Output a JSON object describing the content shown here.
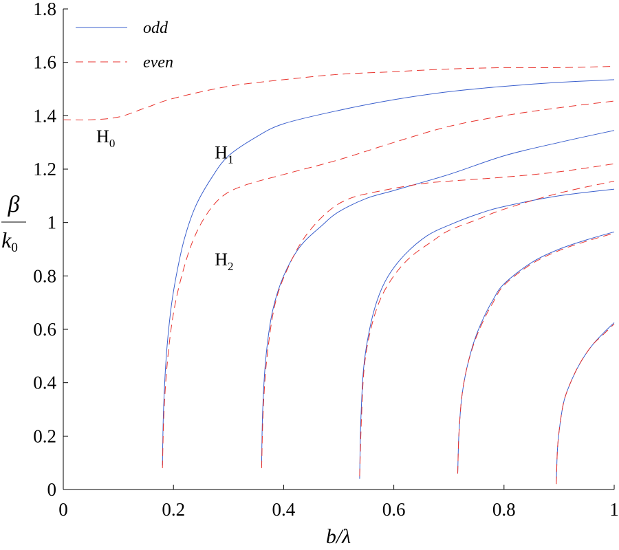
{
  "chart_data": {
    "type": "line",
    "title": "",
    "xlabel": "b/λ",
    "ylabel": {
      "numerator": "β",
      "denominator": "k",
      "denominator_sub": "0"
    },
    "xlim": [
      0,
      1
    ],
    "ylim": [
      0,
      1.8
    ],
    "xticks": [
      "0",
      "0.2",
      "0.4",
      "0.6",
      "0.8",
      "1"
    ],
    "yticks": [
      "0",
      "0.2",
      "0.4",
      "0.6",
      "0.8",
      "1",
      "1.2",
      "1.4",
      "1.6",
      "1.8"
    ],
    "grid": false,
    "legend_position": "top-left",
    "legend": [
      {
        "label": "odd",
        "style": "solid",
        "color": "#3a5fcd"
      },
      {
        "label": "even",
        "style": "dashed",
        "color": "#e8322c"
      }
    ],
    "annotations": [
      {
        "text": "H",
        "sub": "0",
        "x": 0.06,
        "y": 1.3
      },
      {
        "text": "H",
        "sub": "1",
        "x": 0.275,
        "y": 1.24
      },
      {
        "text": "H",
        "sub": "2",
        "x": 0.275,
        "y": 0.84
      }
    ],
    "series": [
      {
        "mode": "even",
        "style": "dashed",
        "points": [
          [
            0,
            1.385
          ],
          [
            0.05,
            1.385
          ],
          [
            0.1,
            1.395
          ],
          [
            0.15,
            1.43
          ],
          [
            0.2,
            1.465
          ],
          [
            0.3,
            1.51
          ],
          [
            0.4,
            1.535
          ],
          [
            0.5,
            1.555
          ],
          [
            0.6,
            1.565
          ],
          [
            0.7,
            1.575
          ],
          [
            0.8,
            1.58
          ],
          [
            0.9,
            1.58
          ],
          [
            1.0,
            1.585
          ]
        ]
      },
      {
        "mode": "odd",
        "style": "solid",
        "points": [
          [
            0.18,
            0.09
          ],
          [
            0.182,
            0.3
          ],
          [
            0.187,
            0.5
          ],
          [
            0.195,
            0.67
          ],
          [
            0.205,
            0.8
          ],
          [
            0.22,
            0.94
          ],
          [
            0.24,
            1.06
          ],
          [
            0.27,
            1.17
          ],
          [
            0.3,
            1.25
          ],
          [
            0.35,
            1.32
          ],
          [
            0.4,
            1.37
          ],
          [
            0.5,
            1.42
          ],
          [
            0.6,
            1.46
          ],
          [
            0.7,
            1.49
          ],
          [
            0.8,
            1.51
          ],
          [
            0.9,
            1.525
          ],
          [
            1.0,
            1.535
          ]
        ]
      },
      {
        "mode": "even",
        "style": "dashed",
        "points": [
          [
            0.18,
            0.08
          ],
          [
            0.183,
            0.3
          ],
          [
            0.19,
            0.5
          ],
          [
            0.2,
            0.66
          ],
          [
            0.215,
            0.8
          ],
          [
            0.235,
            0.93
          ],
          [
            0.26,
            1.03
          ],
          [
            0.29,
            1.1
          ],
          [
            0.33,
            1.14
          ],
          [
            0.4,
            1.18
          ],
          [
            0.5,
            1.235
          ],
          [
            0.6,
            1.3
          ],
          [
            0.7,
            1.36
          ],
          [
            0.8,
            1.4
          ],
          [
            0.9,
            1.43
          ],
          [
            1.0,
            1.455
          ]
        ]
      },
      {
        "mode": "odd",
        "style": "solid",
        "points": [
          [
            0.36,
            0.09
          ],
          [
            0.362,
            0.3
          ],
          [
            0.368,
            0.5
          ],
          [
            0.38,
            0.67
          ],
          [
            0.4,
            0.8
          ],
          [
            0.43,
            0.91
          ],
          [
            0.47,
            0.99
          ],
          [
            0.5,
            1.04
          ],
          [
            0.55,
            1.09
          ],
          [
            0.6,
            1.12
          ],
          [
            0.7,
            1.18
          ],
          [
            0.8,
            1.25
          ],
          [
            0.9,
            1.3
          ],
          [
            1.0,
            1.345
          ]
        ]
      },
      {
        "mode": "even",
        "style": "dashed",
        "points": [
          [
            0.36,
            0.08
          ],
          [
            0.363,
            0.3
          ],
          [
            0.37,
            0.5
          ],
          [
            0.385,
            0.7
          ],
          [
            0.41,
            0.84
          ],
          [
            0.44,
            0.95
          ],
          [
            0.48,
            1.04
          ],
          [
            0.52,
            1.09
          ],
          [
            0.58,
            1.12
          ],
          [
            0.65,
            1.145
          ],
          [
            0.7,
            1.155
          ],
          [
            0.8,
            1.17
          ],
          [
            0.9,
            1.19
          ],
          [
            1.0,
            1.22
          ]
        ]
      },
      {
        "mode": "odd",
        "style": "solid",
        "points": [
          [
            0.538,
            0.04
          ],
          [
            0.54,
            0.25
          ],
          [
            0.545,
            0.45
          ],
          [
            0.555,
            0.59
          ],
          [
            0.57,
            0.71
          ],
          [
            0.59,
            0.8
          ],
          [
            0.62,
            0.88
          ],
          [
            0.66,
            0.95
          ],
          [
            0.7,
            0.99
          ],
          [
            0.75,
            1.03
          ],
          [
            0.8,
            1.06
          ],
          [
            0.9,
            1.1
          ],
          [
            1.0,
            1.125
          ]
        ]
      },
      {
        "mode": "even",
        "style": "dashed",
        "points": [
          [
            0.538,
            0.05
          ],
          [
            0.541,
            0.25
          ],
          [
            0.546,
            0.45
          ],
          [
            0.557,
            0.59
          ],
          [
            0.575,
            0.71
          ],
          [
            0.6,
            0.8
          ],
          [
            0.63,
            0.87
          ],
          [
            0.67,
            0.93
          ],
          [
            0.7,
            0.97
          ],
          [
            0.75,
            1.01
          ],
          [
            0.8,
            1.05
          ],
          [
            0.9,
            1.11
          ],
          [
            1.0,
            1.155
          ]
        ]
      },
      {
        "mode": "odd",
        "style": "solid",
        "points": [
          [
            0.716,
            0.06
          ],
          [
            0.718,
            0.2
          ],
          [
            0.723,
            0.34
          ],
          [
            0.732,
            0.45
          ],
          [
            0.745,
            0.55
          ],
          [
            0.76,
            0.63
          ],
          [
            0.78,
            0.71
          ],
          [
            0.8,
            0.77
          ],
          [
            0.85,
            0.85
          ],
          [
            0.9,
            0.9
          ],
          [
            0.95,
            0.935
          ],
          [
            1.0,
            0.965
          ]
        ]
      },
      {
        "mode": "even",
        "style": "dashed",
        "points": [
          [
            0.716,
            0.06
          ],
          [
            0.718,
            0.2
          ],
          [
            0.723,
            0.34
          ],
          [
            0.732,
            0.45
          ],
          [
            0.746,
            0.55
          ],
          [
            0.762,
            0.63
          ],
          [
            0.78,
            0.7
          ],
          [
            0.8,
            0.765
          ],
          [
            0.85,
            0.845
          ],
          [
            0.9,
            0.895
          ],
          [
            0.95,
            0.93
          ],
          [
            1.0,
            0.96
          ]
        ]
      },
      {
        "mode": "odd",
        "style": "solid",
        "points": [
          [
            0.895,
            0.03
          ],
          [
            0.897,
            0.15
          ],
          [
            0.902,
            0.25
          ],
          [
            0.91,
            0.34
          ],
          [
            0.925,
            0.42
          ],
          [
            0.94,
            0.48
          ],
          [
            0.96,
            0.54
          ],
          [
            0.98,
            0.585
          ],
          [
            1.0,
            0.625
          ]
        ]
      },
      {
        "mode": "even",
        "style": "dashed",
        "points": [
          [
            0.895,
            0.02
          ],
          [
            0.897,
            0.15
          ],
          [
            0.902,
            0.25
          ],
          [
            0.91,
            0.34
          ],
          [
            0.925,
            0.42
          ],
          [
            0.94,
            0.48
          ],
          [
            0.96,
            0.54
          ],
          [
            0.98,
            0.58
          ],
          [
            1.0,
            0.62
          ]
        ]
      }
    ]
  }
}
